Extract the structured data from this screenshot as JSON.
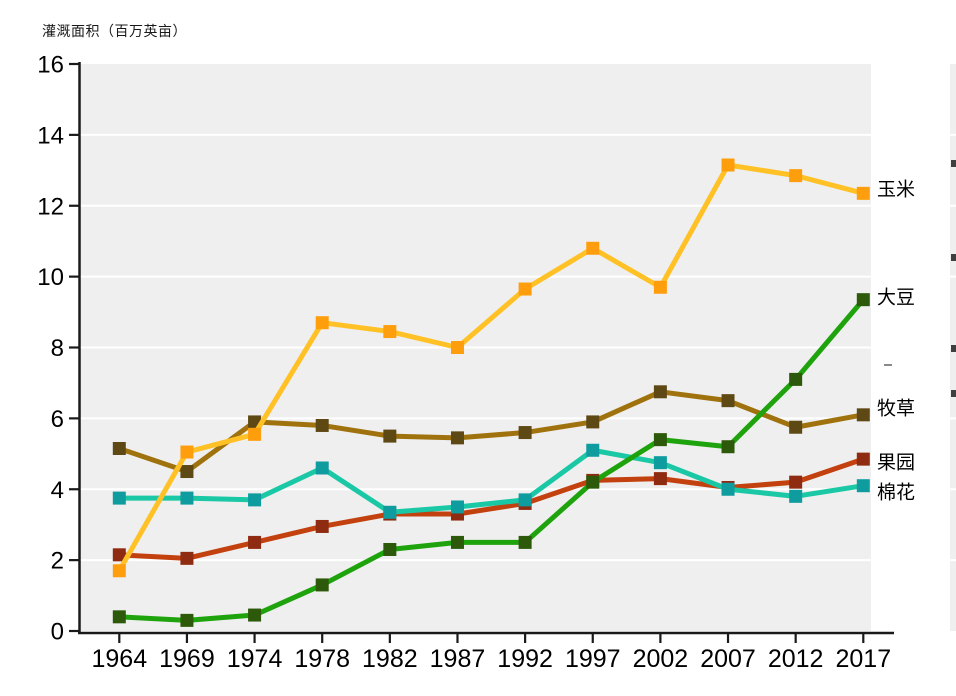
{
  "chart_title": "灌溉面积（百万英亩）",
  "chart_data": {
    "type": "line",
    "title": "",
    "ylabel": "灌溉面积（百万英亩）",
    "xlabel": "",
    "x": [
      1964,
      1969,
      1974,
      1978,
      1982,
      1987,
      1992,
      1997,
      2002,
      2007,
      2012,
      2017
    ],
    "ylim": [
      0,
      16
    ],
    "ytick_step": 2,
    "grid": true,
    "plot_bg": "#EFEFEF",
    "grid_color": "#FFFFFF",
    "axis_color": "#1A1A1A",
    "text_color": "#000000",
    "legend_position": "right-of-last-point",
    "series": [
      {
        "name": "玉米",
        "key": "corn",
        "line_color": "#FFC125",
        "marker_color": "#FF9E0D",
        "values": [
          1.7,
          5.05,
          5.55,
          8.7,
          8.45,
          8.0,
          9.65,
          10.8,
          9.7,
          13.15,
          12.85,
          12.35
        ]
      },
      {
        "name": "大豆",
        "key": "soybean",
        "line_color": "#1FA30D",
        "marker_color": "#2D5A0A",
        "values": [
          0.4,
          0.3,
          0.45,
          1.3,
          2.3,
          2.5,
          2.5,
          4.2,
          5.4,
          5.2,
          7.1,
          9.35
        ]
      },
      {
        "name": "牧草",
        "key": "hay",
        "line_color": "#A0720E",
        "marker_color": "#5E4914",
        "values": [
          5.15,
          4.5,
          5.9,
          5.8,
          5.5,
          5.45,
          5.6,
          5.9,
          6.75,
          6.5,
          5.75,
          6.1
        ]
      },
      {
        "name": "果园",
        "key": "orchard",
        "line_color": "#C2410F",
        "marker_color": "#8F2B10",
        "values": [
          2.15,
          2.05,
          2.5,
          2.95,
          3.3,
          3.3,
          3.6,
          4.25,
          4.3,
          4.05,
          4.2,
          4.85
        ]
      },
      {
        "name": "棉花",
        "key": "cotton",
        "line_color": "#1BC8A5",
        "marker_color": "#0F9C9E",
        "values": [
          3.75,
          3.75,
          3.7,
          4.6,
          3.35,
          3.5,
          3.7,
          5.1,
          4.75,
          4.0,
          3.8,
          4.1
        ]
      }
    ]
  }
}
